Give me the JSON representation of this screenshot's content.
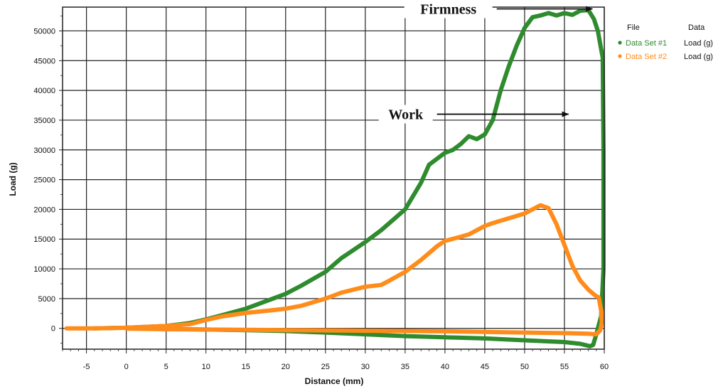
{
  "chart_data": {
    "type": "line",
    "title": "",
    "xlabel": "Distance (mm)",
    "ylabel": "Load (g)",
    "xlim": [
      -8,
      60
    ],
    "ylim": [
      -3500,
      54000
    ],
    "x_ticks": [
      -5,
      0,
      5,
      10,
      15,
      20,
      25,
      30,
      35,
      40,
      45,
      50,
      55,
      60
    ],
    "y_ticks": [
      0,
      5000,
      10000,
      15000,
      20000,
      25000,
      30000,
      35000,
      40000,
      45000,
      50000
    ],
    "grid": true,
    "legend": {
      "placement": "top-right",
      "headers": [
        "File",
        "Data"
      ],
      "entries": [
        {
          "file": "Data Set #1",
          "data": "Load (g)",
          "color": "#2e8b2e"
        },
        {
          "file": "Data Set #2",
          "data": "Load (g)",
          "color": "#ff8c1a"
        }
      ]
    },
    "annotations": [
      {
        "text": "Firmness",
        "arrow_from": [
          46.5,
          53700
        ],
        "arrow_to": [
          58.5,
          53700
        ]
      },
      {
        "text": "Work",
        "arrow_from": [
          39,
          36000
        ],
        "arrow_to": [
          55.5,
          36000
        ]
      }
    ],
    "series": [
      {
        "name": "Data Set #1",
        "color": "#2e8b2e",
        "points": [
          [
            -4,
            0
          ],
          [
            0,
            100
          ],
          [
            5,
            400
          ],
          [
            8,
            900
          ],
          [
            10,
            1500
          ],
          [
            12,
            2200
          ],
          [
            15,
            3300
          ],
          [
            18,
            4800
          ],
          [
            20,
            5800
          ],
          [
            22,
            7200
          ],
          [
            25,
            9500
          ],
          [
            27,
            11800
          ],
          [
            30,
            14500
          ],
          [
            32,
            16500
          ],
          [
            35,
            20000
          ],
          [
            37,
            24500
          ],
          [
            38,
            27500
          ],
          [
            40,
            29500
          ],
          [
            41,
            30000
          ],
          [
            42,
            31000
          ],
          [
            43,
            32300
          ],
          [
            44,
            31800
          ],
          [
            45,
            32600
          ],
          [
            46,
            35000
          ],
          [
            47,
            40000
          ],
          [
            48,
            44000
          ],
          [
            49,
            47500
          ],
          [
            50,
            50500
          ],
          [
            51,
            52300
          ],
          [
            52,
            52600
          ],
          [
            53,
            53000
          ],
          [
            54,
            52600
          ],
          [
            55,
            53000
          ],
          [
            56,
            52700
          ],
          [
            57,
            53400
          ],
          [
            58,
            53500
          ],
          [
            58.7,
            52000
          ],
          [
            59.2,
            50000
          ],
          [
            59.6,
            47000
          ],
          [
            59.8,
            45500
          ],
          [
            59.9,
            30000
          ],
          [
            59.9,
            10000
          ],
          [
            59.6,
            2000
          ],
          [
            59.2,
            0
          ],
          [
            59,
            -1000
          ],
          [
            58.6,
            -2800
          ],
          [
            58.2,
            -3000
          ],
          [
            57,
            -2600
          ],
          [
            55,
            -2300
          ],
          [
            50,
            -2000
          ],
          [
            45,
            -1700
          ],
          [
            40,
            -1500
          ],
          [
            35,
            -1300
          ],
          [
            30,
            -1000
          ],
          [
            25,
            -700
          ],
          [
            20,
            -450
          ],
          [
            15,
            -300
          ],
          [
            10,
            -200
          ],
          [
            5,
            -100
          ],
          [
            0,
            0
          ]
        ]
      },
      {
        "name": "Data Set #2",
        "color": "#ff8c1a",
        "points": [
          [
            -7.5,
            0
          ],
          [
            -4,
            0
          ],
          [
            0,
            100
          ],
          [
            5,
            400
          ],
          [
            8,
            700
          ],
          [
            10,
            1400
          ],
          [
            12,
            2000
          ],
          [
            15,
            2600
          ],
          [
            18,
            3000
          ],
          [
            20,
            3300
          ],
          [
            22,
            3800
          ],
          [
            25,
            5000
          ],
          [
            27,
            6000
          ],
          [
            30,
            7000
          ],
          [
            32,
            7300
          ],
          [
            33,
            8000
          ],
          [
            35,
            9500
          ],
          [
            37,
            11500
          ],
          [
            39,
            13800
          ],
          [
            40,
            14700
          ],
          [
            42,
            15400
          ],
          [
            43,
            15800
          ],
          [
            45,
            17200
          ],
          [
            46,
            17700
          ],
          [
            48,
            18500
          ],
          [
            50,
            19300
          ],
          [
            51,
            20000
          ],
          [
            52,
            20700
          ],
          [
            53,
            20200
          ],
          [
            54,
            17500
          ],
          [
            55,
            14000
          ],
          [
            56,
            10500
          ],
          [
            57,
            8000
          ],
          [
            58,
            6500
          ],
          [
            58.8,
            5600
          ],
          [
            59.3,
            5200
          ],
          [
            59.6,
            3000
          ],
          [
            59.7,
            1000
          ],
          [
            59.5,
            -300
          ],
          [
            59,
            -1000
          ],
          [
            58,
            -900
          ],
          [
            55,
            -800
          ],
          [
            50,
            -700
          ],
          [
            45,
            -600
          ],
          [
            40,
            -500
          ],
          [
            35,
            -450
          ],
          [
            30,
            -400
          ],
          [
            25,
            -350
          ],
          [
            20,
            -300
          ],
          [
            15,
            -250
          ],
          [
            10,
            -200
          ],
          [
            5,
            -150
          ],
          [
            0,
            -50
          ]
        ]
      }
    ]
  }
}
